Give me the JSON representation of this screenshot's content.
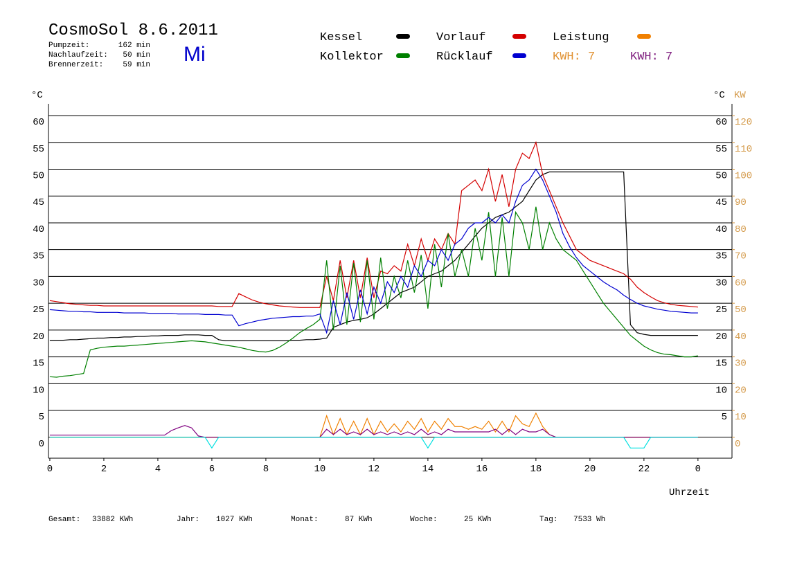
{
  "chart_data": {
    "type": "line",
    "title": "CosmoSol 8.6.2011",
    "weekday": "Mi",
    "stats": [
      {
        "label": "Pumpzeit:",
        "value": "162 min"
      },
      {
        "label": "Nachlaufzeit:",
        "value": "50 min"
      },
      {
        "label": "Brennerzeit:",
        "value": "59 min"
      }
    ],
    "kwh": [
      {
        "label": "KWH: 7",
        "color": "#e09030"
      },
      {
        "label": "KWH: 7",
        "color": "#802080"
      }
    ],
    "ylabel": "°C",
    "y2label_c": "°C",
    "y2label": "KW",
    "xlabel": "Uhrzeit",
    "xlim": [
      -0.05,
      25.26
    ],
    "xticks": [
      0,
      2,
      4,
      6,
      8,
      10,
      12,
      14,
      16,
      18,
      20,
      22,
      {
        "value": 24,
        "label": "0"
      }
    ],
    "ylim": [
      -3.9,
      62.2
    ],
    "yticks": [
      0,
      5,
      10,
      15,
      20,
      25,
      30,
      35,
      40,
      45,
      50,
      55,
      60
    ],
    "yticks_right": [
      5,
      10,
      15,
      20,
      25,
      30,
      35,
      40,
      45,
      50,
      55,
      60
    ],
    "y2lim": [
      -7.8,
      124.4
    ],
    "y2ticks": [
      0,
      10,
      20,
      30,
      40,
      50,
      60,
      70,
      80,
      90,
      100,
      110,
      120
    ],
    "y2color": "#d49a4a",
    "grid": true,
    "x": [
      0,
      0.25,
      0.5,
      0.75,
      1,
      1.25,
      1.5,
      1.75,
      2,
      2.25,
      2.5,
      2.75,
      3,
      3.25,
      3.5,
      3.75,
      4,
      4.25,
      4.5,
      4.75,
      5,
      5.25,
      5.5,
      5.75,
      6,
      6.25,
      6.5,
      6.75,
      7,
      7.25,
      7.5,
      7.75,
      8,
      8.25,
      8.5,
      8.75,
      9,
      9.25,
      9.5,
      9.75,
      10,
      10.25,
      10.5,
      10.75,
      11,
      11.25,
      11.5,
      11.75,
      12,
      12.25,
      12.5,
      12.75,
      13,
      13.25,
      13.5,
      13.75,
      14,
      14.25,
      14.5,
      14.75,
      15,
      15.25,
      15.5,
      15.75,
      16,
      16.25,
      16.5,
      16.75,
      17,
      17.25,
      17.5,
      17.75,
      18,
      18.25,
      18.5,
      18.75,
      19,
      19.25,
      19.5,
      19.75,
      20,
      20.25,
      20.5,
      20.75,
      21,
      21.25,
      21.5,
      21.75,
      22,
      22.25,
      22.5,
      22.75,
      23,
      23.25,
      23.5,
      23.75,
      24
    ],
    "series": [
      {
        "name": "Kessel",
        "color": "#000000",
        "values": [
          18.1,
          18.1,
          18.1,
          18.2,
          18.2,
          18.3,
          18.4,
          18.5,
          18.5,
          18.6,
          18.6,
          18.7,
          18.7,
          18.8,
          18.8,
          18.9,
          18.9,
          19,
          19,
          19,
          19.1,
          19.1,
          19.1,
          19,
          19,
          18.2,
          18,
          18,
          18,
          18,
          18,
          18,
          18,
          18,
          18,
          18,
          18.1,
          18.1,
          18.2,
          18.2,
          18.3,
          18.5,
          20.5,
          21,
          21.5,
          21.8,
          22,
          22.3,
          23,
          24,
          25,
          26,
          27,
          27.5,
          28,
          29,
          30,
          30.5,
          31,
          32,
          33,
          34.5,
          36,
          37.5,
          39,
          40,
          41,
          41.5,
          42,
          43,
          44,
          46,
          48,
          49,
          49.5,
          49.5,
          49.5,
          49.5,
          49.5,
          49.5,
          49.5,
          49.5,
          49.5,
          49.5,
          49.5,
          49.5,
          21,
          19.5,
          19.2,
          19,
          19,
          19,
          19,
          19,
          19,
          19,
          19
        ]
      },
      {
        "name": "Vorlauf",
        "color": "#d40000",
        "values": [
          25.5,
          25.3,
          25.1,
          24.9,
          24.8,
          24.7,
          24.6,
          24.6,
          24.5,
          24.5,
          24.5,
          24.5,
          24.5,
          24.5,
          24.5,
          24.5,
          24.5,
          24.5,
          24.5,
          24.5,
          24.5,
          24.5,
          24.5,
          24.5,
          24.5,
          24.4,
          24.4,
          24.4,
          26.8,
          26.2,
          25.6,
          25.2,
          24.9,
          24.7,
          24.5,
          24.4,
          24.3,
          24.2,
          24.2,
          24.2,
          24.2,
          30,
          25.5,
          33,
          26,
          33,
          26,
          33.5,
          26,
          31,
          30.5,
          32,
          31,
          36,
          32,
          37,
          33,
          37,
          35,
          38,
          36,
          46,
          47,
          48,
          46,
          50,
          44,
          49,
          43,
          50,
          53,
          52,
          55,
          49,
          46,
          43,
          40,
          37.5,
          35,
          34,
          33,
          32.5,
          32,
          31.5,
          31,
          30.5,
          29.5,
          28,
          27,
          26.2,
          25.5,
          25.1,
          24.8,
          24.6,
          24.5,
          24.4,
          24.3
        ]
      },
      {
        "name": "Leistung",
        "color": "#f08000",
        "axis": "y2",
        "values": [
          0,
          0,
          0,
          0,
          0,
          0,
          0,
          0,
          0,
          0,
          0,
          0,
          0,
          0,
          0,
          0,
          0,
          0,
          0,
          0,
          0,
          0,
          0,
          0,
          0,
          0,
          0,
          0,
          0,
          0,
          0,
          0,
          0,
          0,
          0,
          0,
          0,
          0,
          0,
          0,
          0,
          8,
          1,
          7,
          1,
          6,
          1,
          7,
          1,
          6,
          2,
          5,
          2,
          6,
          3,
          7,
          2,
          6,
          3,
          7,
          4,
          4,
          3,
          4,
          3,
          6,
          2,
          6,
          2,
          8,
          5,
          4,
          9,
          4,
          1,
          0,
          0,
          0,
          0,
          0,
          0,
          0,
          0,
          0,
          0,
          0,
          0,
          0,
          0,
          0,
          0,
          0,
          0,
          0,
          0,
          0,
          0
        ]
      },
      {
        "name": "Kollektor",
        "color": "#008000",
        "values": [
          11.3,
          11.2,
          11.4,
          11.5,
          11.7,
          11.9,
          16.3,
          16.6,
          16.8,
          16.9,
          17,
          17,
          17.1,
          17.2,
          17.3,
          17.4,
          17.5,
          17.6,
          17.7,
          17.8,
          17.9,
          18,
          17.9,
          17.8,
          17.6,
          17.4,
          17.2,
          17,
          16.8,
          16.5,
          16.2,
          16,
          15.9,
          16.2,
          16.8,
          17.6,
          18.5,
          19.5,
          20.3,
          21,
          22,
          33,
          20,
          32,
          21,
          32.5,
          21.5,
          33,
          22,
          33.5,
          24,
          30,
          26,
          33,
          27,
          34,
          24,
          36,
          28,
          38,
          30,
          35,
          30,
          39,
          33,
          42,
          30,
          41,
          30,
          42,
          40,
          35,
          43,
          35,
          40,
          37,
          35,
          34,
          33,
          31,
          29,
          27,
          25,
          23.5,
          22,
          20.5,
          19,
          18,
          17,
          16.3,
          15.8,
          15.5,
          15.4,
          15.2,
          15,
          15,
          15.2
        ]
      },
      {
        "name": "Rücklauf",
        "color": "#0000d0",
        "values": [
          23.8,
          23.7,
          23.6,
          23.5,
          23.5,
          23.4,
          23.4,
          23.3,
          23.3,
          23.3,
          23.3,
          23.2,
          23.2,
          23.2,
          23.2,
          23.1,
          23.1,
          23.1,
          23.1,
          23,
          23,
          23,
          23,
          22.9,
          22.9,
          22.9,
          22.8,
          22.8,
          20.8,
          21.2,
          21.5,
          21.8,
          22,
          22.2,
          22.3,
          22.4,
          22.5,
          22.5,
          22.6,
          22.6,
          23,
          19.5,
          25.5,
          21,
          27,
          22,
          27.5,
          23,
          28,
          25,
          29,
          27,
          30,
          28,
          32,
          30,
          33,
          32,
          35,
          33,
          36,
          37,
          39,
          40,
          40,
          41,
          40,
          41.5,
          40,
          44,
          47,
          48,
          50,
          48,
          45,
          42,
          38,
          35.5,
          33.5,
          32,
          31,
          30,
          29,
          28.2,
          27.5,
          26.5,
          25.7,
          25,
          24.5,
          24.2,
          23.9,
          23.7,
          23.5,
          23.4,
          23.3,
          23.2,
          23.2
        ]
      },
      {
        "color": "#800080",
        "axis": "y2",
        "values": [
          0.8,
          0.8,
          0.8,
          0.8,
          0.8,
          0.8,
          0.8,
          0.8,
          0.8,
          0.8,
          0.8,
          0.8,
          0.8,
          0.8,
          0.8,
          0.8,
          0.8,
          0.8,
          2.5,
          3.5,
          4.4,
          3.5,
          0.5,
          0,
          0,
          0,
          0,
          0,
          0,
          0,
          0,
          0,
          0,
          0,
          0,
          0,
          0,
          0,
          0,
          0,
          0,
          3,
          1,
          3,
          1,
          2,
          1,
          3,
          1,
          2,
          1,
          2,
          1,
          2,
          1,
          3,
          1,
          2,
          1,
          3,
          2,
          2,
          2,
          2,
          2,
          2,
          3,
          1,
          3,
          1,
          3,
          2,
          2,
          3,
          1,
          0,
          0,
          0,
          0,
          0,
          0,
          0,
          0,
          0,
          0,
          0,
          0,
          0,
          0,
          0,
          0,
          0,
          0,
          0,
          0,
          0,
          0
        ]
      },
      {
        "color": "#00e0e0",
        "axis": "y2",
        "values": [
          0,
          0,
          0,
          0,
          0,
          0,
          0,
          0,
          0,
          0,
          0,
          0,
          0,
          0,
          0,
          0,
          0,
          0,
          0,
          0,
          0,
          0,
          0,
          0,
          -4,
          0,
          0,
          0,
          0,
          0,
          0,
          0,
          0,
          0,
          0,
          0,
          0,
          0,
          0,
          0,
          0,
          0,
          0,
          0,
          0,
          0,
          0,
          0,
          0,
          0,
          0,
          0,
          0,
          0,
          0,
          0,
          -4,
          0,
          0,
          0,
          0,
          0,
          0,
          0,
          0,
          0,
          0,
          0,
          0,
          0,
          0,
          0,
          0,
          0,
          0,
          0,
          0,
          0,
          0,
          0,
          0,
          0,
          0,
          0,
          0,
          0,
          -4,
          -4,
          -4,
          0,
          0,
          0,
          0,
          0,
          0,
          0,
          0
        ]
      }
    ],
    "totals": [
      {
        "label": "Gesamt:",
        "value": "33882 KWh"
      },
      {
        "label": "Jahr:",
        "value": "1027 KWh"
      },
      {
        "label": "Monat:",
        "value": "87 KWh"
      },
      {
        "label": "Woche:",
        "value": "25 KWh"
      },
      {
        "label": "Tag:",
        "value": "7533 Wh"
      }
    ]
  }
}
